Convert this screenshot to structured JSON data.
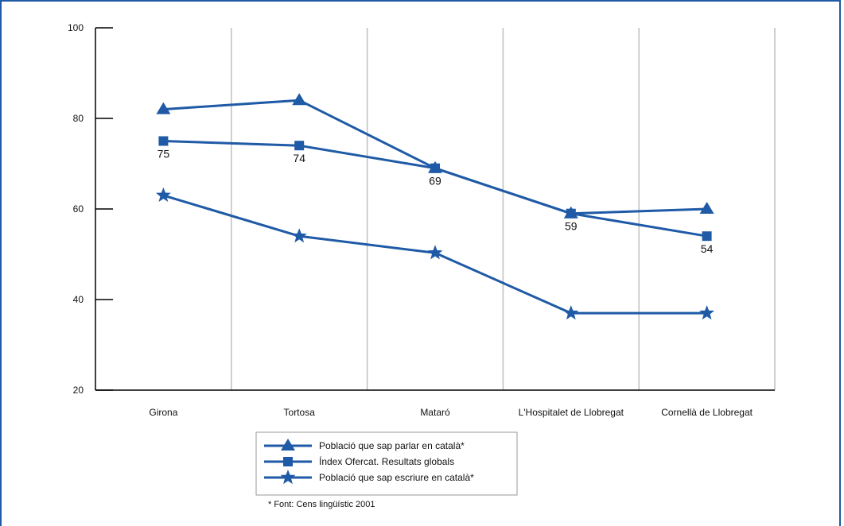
{
  "chart_data": {
    "type": "line",
    "categories": [
      "Girona",
      "Tortosa",
      "Mataró",
      "L'Hospitalet de Llobregat",
      "Cornellà de Llobregat"
    ],
    "ylim": [
      20,
      100
    ],
    "yticks": [
      20,
      40,
      60,
      80,
      100
    ],
    "grid": "vertical",
    "series": [
      {
        "name": "Població que sap parlar en català*",
        "marker": "triangle",
        "values": [
          82,
          84,
          69,
          59,
          60
        ],
        "show_labels": false
      },
      {
        "name": "Índex Ofercat. Resultats globals",
        "marker": "square",
        "values": [
          75,
          74,
          69,
          59,
          54
        ],
        "show_labels": true
      },
      {
        "name": "Població que sap escriure en català*",
        "marker": "star",
        "values": [
          63,
          54,
          50.3,
          37,
          37
        ],
        "show_labels": false
      }
    ],
    "legend_position": "bottom-center",
    "line_color": "#1f5aa6",
    "source": "* Font: Cens lingüístic 2001"
  }
}
